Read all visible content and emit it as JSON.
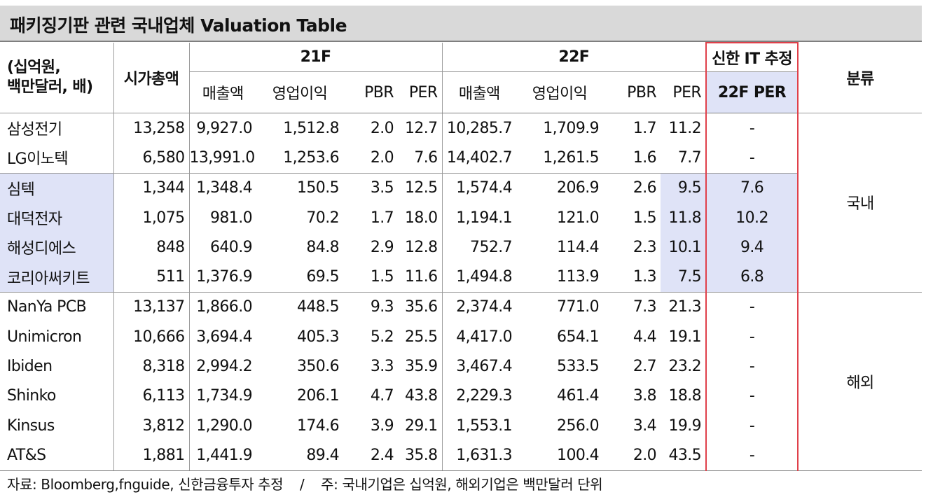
{
  "title": "패키징기판 관련 국내업체 Valuation Table",
  "header": {
    "unit": [
      "(십억원,",
      "백만달러, 배)"
    ],
    "market_cap": "시가총액",
    "period1": "21F",
    "period2": "22F",
    "estimate_group": "신한 IT 추정",
    "estimate_col": "22F PER",
    "category": "분류",
    "cols": [
      "매출액",
      "영업이익",
      "PBR",
      "PER"
    ]
  },
  "rows": [
    {
      "name": "삼성전기",
      "cap": "13,258",
      "s21": "9,927.0",
      "o21": "1,512.8",
      "pbr21": "2.0",
      "per21": "12.7",
      "s22": "10,285.7",
      "o22": "1,709.9",
      "pbr22": "1.7",
      "per22": "11.2",
      "est": "-"
    },
    {
      "name": "LG이노텍",
      "cap": "6,580",
      "s21": "13,991.0",
      "o21": "1,253.6",
      "pbr21": "2.0",
      "per21": "7.6",
      "s22": "14,402.7",
      "o22": "1,261.5",
      "pbr22": "1.6",
      "per22": "7.7",
      "est": "-"
    },
    {
      "name": "심텍",
      "cap": "1,344",
      "s21": "1,348.4",
      "o21": "150.5",
      "pbr21": "3.5",
      "per21": "12.5",
      "s22": "1,574.4",
      "o22": "206.9",
      "pbr22": "2.6",
      "per22": "9.5",
      "est": "7.6"
    },
    {
      "name": "대덕전자",
      "cap": "1,075",
      "s21": "981.0",
      "o21": "70.2",
      "pbr21": "1.7",
      "per21": "18.0",
      "s22": "1,194.1",
      "o22": "121.0",
      "pbr22": "1.5",
      "per22": "11.8",
      "est": "10.2"
    },
    {
      "name": "해성디에스",
      "cap": "848",
      "s21": "640.9",
      "o21": "84.8",
      "pbr21": "2.9",
      "per21": "12.8",
      "s22": "752.7",
      "o22": "114.4",
      "pbr22": "2.3",
      "per22": "10.1",
      "est": "9.4"
    },
    {
      "name": "코리아써키트",
      "cap": "511",
      "s21": "1,376.9",
      "o21": "69.5",
      "pbr21": "1.5",
      "per21": "11.6",
      "s22": "1,494.8",
      "o22": "113.9",
      "pbr22": "1.3",
      "per22": "7.5",
      "est": "6.8"
    },
    {
      "name": "NanYa PCB",
      "cap": "13,137",
      "s21": "1,866.0",
      "o21": "448.5",
      "pbr21": "9.3",
      "per21": "35.6",
      "s22": "2,374.4",
      "o22": "771.0",
      "pbr22": "7.3",
      "per22": "21.3",
      "est": "-"
    },
    {
      "name": "Unimicron",
      "cap": "10,666",
      "s21": "3,694.4",
      "o21": "405.3",
      "pbr21": "5.2",
      "per21": "25.5",
      "s22": "4,417.0",
      "o22": "654.1",
      "pbr22": "4.4",
      "per22": "19.1",
      "est": "-"
    },
    {
      "name": "Ibiden",
      "cap": "8,318",
      "s21": "2,994.2",
      "o21": "350.6",
      "pbr21": "3.3",
      "per21": "35.9",
      "s22": "3,467.4",
      "o22": "533.5",
      "pbr22": "2.7",
      "per22": "23.2",
      "est": "-"
    },
    {
      "name": "Shinko",
      "cap": "6,113",
      "s21": "1,734.9",
      "o21": "206.1",
      "pbr21": "4.7",
      "per21": "43.8",
      "s22": "2,229.3",
      "o22": "461.4",
      "pbr22": "3.8",
      "per22": "18.8",
      "est": "-"
    },
    {
      "name": "Kinsus",
      "cap": "3,812",
      "s21": "1,290.0",
      "o21": "174.6",
      "pbr21": "3.9",
      "per21": "29.1",
      "s22": "1,553.1",
      "o22": "256.0",
      "pbr22": "3.4",
      "per22": "19.9",
      "est": "-"
    },
    {
      "name": "AT&S",
      "cap": "1,881",
      "s21": "1,441.9",
      "o21": "89.4",
      "pbr21": "2.4",
      "per21": "35.8",
      "s22": "1,631.3",
      "o22": "100.4",
      "pbr22": "2.0",
      "per22": "43.5",
      "est": "-"
    }
  ],
  "categories": {
    "domestic": "국내",
    "overseas": "해외"
  },
  "note": "자료: Bloomberg,fnguide, 신한금융투자 추정    /    주: 국내기업은 십억원, 해외기업은 백만달러 단위",
  "colors": {
    "highlight": "#dfe3f7",
    "estimate_border": "#e0404a",
    "title_bg": "#d9d9d9"
  }
}
